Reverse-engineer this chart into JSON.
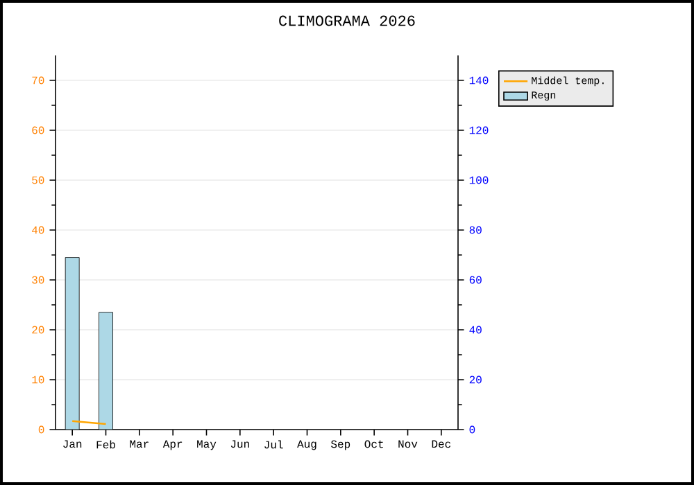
{
  "chart_data": {
    "type": "bar",
    "title": "CLIMOGRAMA 2026",
    "categories": [
      "Jan",
      "Feb",
      "Mar",
      "Apr",
      "May",
      "Jun",
      "Jul",
      "Aug",
      "Sep",
      "Oct",
      "Nov",
      "Dec"
    ],
    "series": [
      {
        "name": "Middel temp.",
        "type": "line",
        "color": "#ffa500",
        "values": [
          1.7,
          1.1,
          null,
          null,
          null,
          null,
          null,
          null,
          null,
          null,
          null,
          null
        ]
      },
      {
        "name": "Regn",
        "type": "bar",
        "axis": "y2",
        "color": "#add8e6",
        "values": [
          69,
          47,
          null,
          null,
          null,
          null,
          null,
          null,
          null,
          null,
          null,
          null
        ]
      }
    ],
    "ylim": [
      0,
      75
    ],
    "yticks": [
      0,
      10,
      20,
      30,
      40,
      50,
      60,
      70
    ],
    "y2lim": [
      0,
      150
    ],
    "y2ticks": [
      0,
      20,
      40,
      60,
      80,
      100,
      120,
      140
    ],
    "grid": "y",
    "legend": "top right"
  }
}
